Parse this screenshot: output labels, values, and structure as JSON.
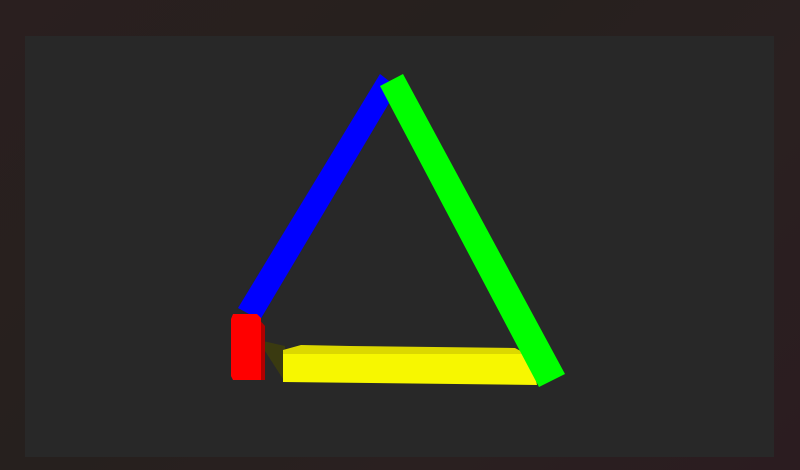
{
  "scene": {
    "background": "#282828",
    "outer_background": "#271f1f",
    "shapes": [
      {
        "name": "blue-bar",
        "color": "#0000ff"
      },
      {
        "name": "green-bar",
        "color": "#00ff00"
      },
      {
        "name": "yellow-bar",
        "color": "#f5f500",
        "side_color": "#d9d400",
        "shadow_color": "#3a3a10"
      },
      {
        "name": "red-block",
        "color": "#ff0000",
        "side_color": "#b30000"
      }
    ]
  }
}
